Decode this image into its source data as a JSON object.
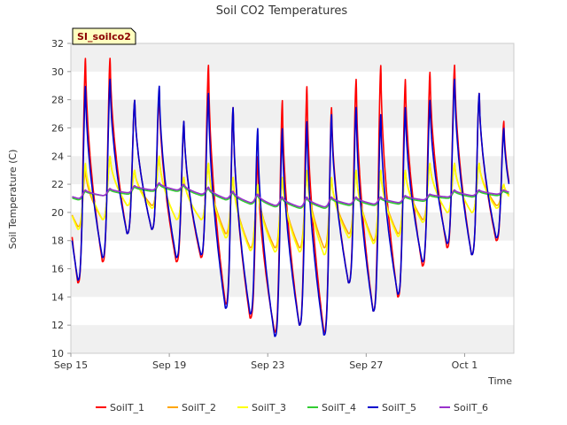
{
  "chart_data": {
    "type": "line",
    "title": "Soil CO2 Temperatures",
    "xlabel": "Time",
    "ylabel": "Soil Temperature (C)",
    "site_tag": "SI_soilco2",
    "ylim": [
      10,
      32
    ],
    "yticks": [
      10,
      12,
      14,
      16,
      18,
      20,
      22,
      24,
      26,
      28,
      30,
      32
    ],
    "xlim": [
      "2023-09-15",
      "2023-10-03"
    ],
    "xticks": [
      {
        "date": "2023-09-15",
        "label": "Sep 15"
      },
      {
        "date": "2023-09-19",
        "label": "Sep 19"
      },
      {
        "date": "2023-09-23",
        "label": "Sep 23"
      },
      {
        "date": "2023-09-27",
        "label": "Sep 27"
      },
      {
        "date": "2023-10-01",
        "label": "Oct 1"
      }
    ],
    "grid": "horizontal alternating bands",
    "legend_position": "bottom",
    "x": [
      "2023-09-15",
      "2023-09-16",
      "2023-09-17",
      "2023-09-18",
      "2023-09-19",
      "2023-09-20",
      "2023-09-21",
      "2023-09-22",
      "2023-09-23",
      "2023-09-24",
      "2023-09-25",
      "2023-09-26",
      "2023-09-27",
      "2023-09-28",
      "2023-09-29",
      "2023-09-30",
      "2023-10-01",
      "2023-10-02"
    ],
    "series": [
      {
        "name": "SoilT_1",
        "color": "#ff0000",
        "daily_max": [
          31.0,
          31.0,
          28.0,
          28.5,
          26.5,
          30.5,
          27.5,
          24.0,
          28.0,
          29.0,
          27.5,
          29.5,
          30.5,
          29.5,
          30.0,
          30.5,
          28.5,
          26.5
        ],
        "daily_min": [
          15.0,
          16.5,
          18.5,
          18.8,
          16.5,
          16.8,
          13.5,
          12.5,
          11.5,
          12.0,
          11.5,
          15.0,
          13.0,
          14.0,
          16.2,
          17.5,
          17.0,
          18.0
        ]
      },
      {
        "name": "SoilT_2",
        "color": "#ffa500",
        "daily_max": [
          23.0,
          24.0,
          23.0,
          24.0,
          22.5,
          23.5,
          22.5,
          22.0,
          22.5,
          23.0,
          22.5,
          23.0,
          23.0,
          23.0,
          23.5,
          23.5,
          23.5,
          22.0
        ],
        "daily_min": [
          19.0,
          19.5,
          20.5,
          20.5,
          19.5,
          19.5,
          18.5,
          17.5,
          17.5,
          17.5,
          17.5,
          18.5,
          18.0,
          18.5,
          19.5,
          20.0,
          20.0,
          20.5
        ]
      },
      {
        "name": "SoilT_3",
        "color": "#ffff00",
        "daily_max": [
          23.5,
          24.0,
          23.0,
          24.0,
          22.5,
          23.5,
          22.5,
          22.0,
          22.5,
          23.0,
          22.5,
          23.0,
          23.0,
          23.0,
          23.5,
          23.5,
          23.5,
          22.0
        ],
        "daily_min": [
          18.8,
          19.5,
          20.5,
          20.3,
          19.5,
          19.5,
          18.2,
          17.3,
          17.2,
          17.2,
          17.0,
          18.2,
          17.8,
          18.3,
          19.3,
          20.0,
          20.0,
          20.3
        ]
      },
      {
        "name": "SoilT_4",
        "color": "#32cd32",
        "daily_max": [
          21.5,
          21.6,
          21.8,
          22.0,
          21.9,
          21.7,
          21.4,
          21.2,
          21.0,
          21.0,
          21.0,
          21.0,
          21.0,
          21.1,
          21.2,
          21.5,
          21.5,
          21.5
        ],
        "daily_min": [
          20.9,
          21.2,
          21.3,
          21.5,
          21.5,
          21.2,
          20.9,
          20.6,
          20.4,
          20.3,
          20.3,
          20.5,
          20.5,
          20.6,
          20.8,
          21.0,
          21.1,
          21.2
        ]
      },
      {
        "name": "SoilT_5",
        "color": "#0000cd",
        "daily_max": [
          29.0,
          29.5,
          28.0,
          29.0,
          26.5,
          28.5,
          27.5,
          26.0,
          26.0,
          26.5,
          27.0,
          27.5,
          27.0,
          27.5,
          28.0,
          29.5,
          28.5,
          26.0
        ],
        "daily_min": [
          15.2,
          16.8,
          18.5,
          18.8,
          16.8,
          17.0,
          13.2,
          12.8,
          11.2,
          12.0,
          11.3,
          15.0,
          13.0,
          14.2,
          16.5,
          17.8,
          17.0,
          18.2
        ]
      },
      {
        "name": "SoilT_6",
        "color": "#9932cc",
        "daily_max": [
          21.6,
          21.7,
          21.9,
          22.1,
          22.0,
          21.8,
          21.5,
          21.3,
          21.1,
          21.1,
          21.1,
          21.1,
          21.1,
          21.2,
          21.3,
          21.6,
          21.6,
          21.6
        ],
        "daily_min": [
          21.0,
          21.2,
          21.4,
          21.6,
          21.6,
          21.3,
          21.0,
          20.7,
          20.5,
          20.4,
          20.4,
          20.6,
          20.6,
          20.7,
          20.9,
          21.1,
          21.2,
          21.3
        ]
      }
    ]
  }
}
